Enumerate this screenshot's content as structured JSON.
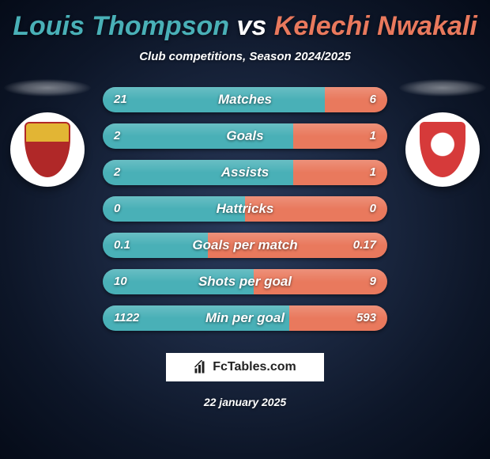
{
  "title": {
    "player_a": "Louis Thompson",
    "vs": "vs",
    "player_b": "Kelechi Nwakali",
    "color_a": "#49b0b7",
    "color_b": "#e9795d",
    "color_vs": "#ffffff",
    "fontsize": 34
  },
  "subtitle": "Club competitions, Season 2024/2025",
  "colors": {
    "accent_left": "#49b0b7",
    "accent_right": "#e9795d",
    "bg_from": "#2a3b5c",
    "bg_to": "#050b18",
    "text": "#ffffff"
  },
  "crests": {
    "left": {
      "name": "stevenage-crest",
      "bg": "#ffffff",
      "shield_fill": "#b02828",
      "shield_accent": "#e2b534"
    },
    "right": {
      "name": "barnsley-crest",
      "bg": "#ffffff",
      "shield_fill": "#d63a3a",
      "shield_accent": "#ffffff"
    }
  },
  "rows": [
    {
      "label": "Matches",
      "left": "21",
      "right": "6",
      "split": 0.78
    },
    {
      "label": "Goals",
      "left": "2",
      "right": "1",
      "split": 0.67
    },
    {
      "label": "Assists",
      "left": "2",
      "right": "1",
      "split": 0.67
    },
    {
      "label": "Hattricks",
      "left": "0",
      "right": "0",
      "split": 0.5
    },
    {
      "label": "Goals per match",
      "left": "0.1",
      "right": "0.17",
      "split": 0.37
    },
    {
      "label": "Shots per goal",
      "left": "10",
      "right": "9",
      "split": 0.53
    },
    {
      "label": "Min per goal",
      "left": "1122",
      "right": "593",
      "split": 0.655
    }
  ],
  "row_style": {
    "height": 32,
    "radius": 16,
    "label_fontsize": 17,
    "value_fontsize": 15
  },
  "brand": {
    "label": "FcTables.com"
  },
  "date": "22 january 2025"
}
